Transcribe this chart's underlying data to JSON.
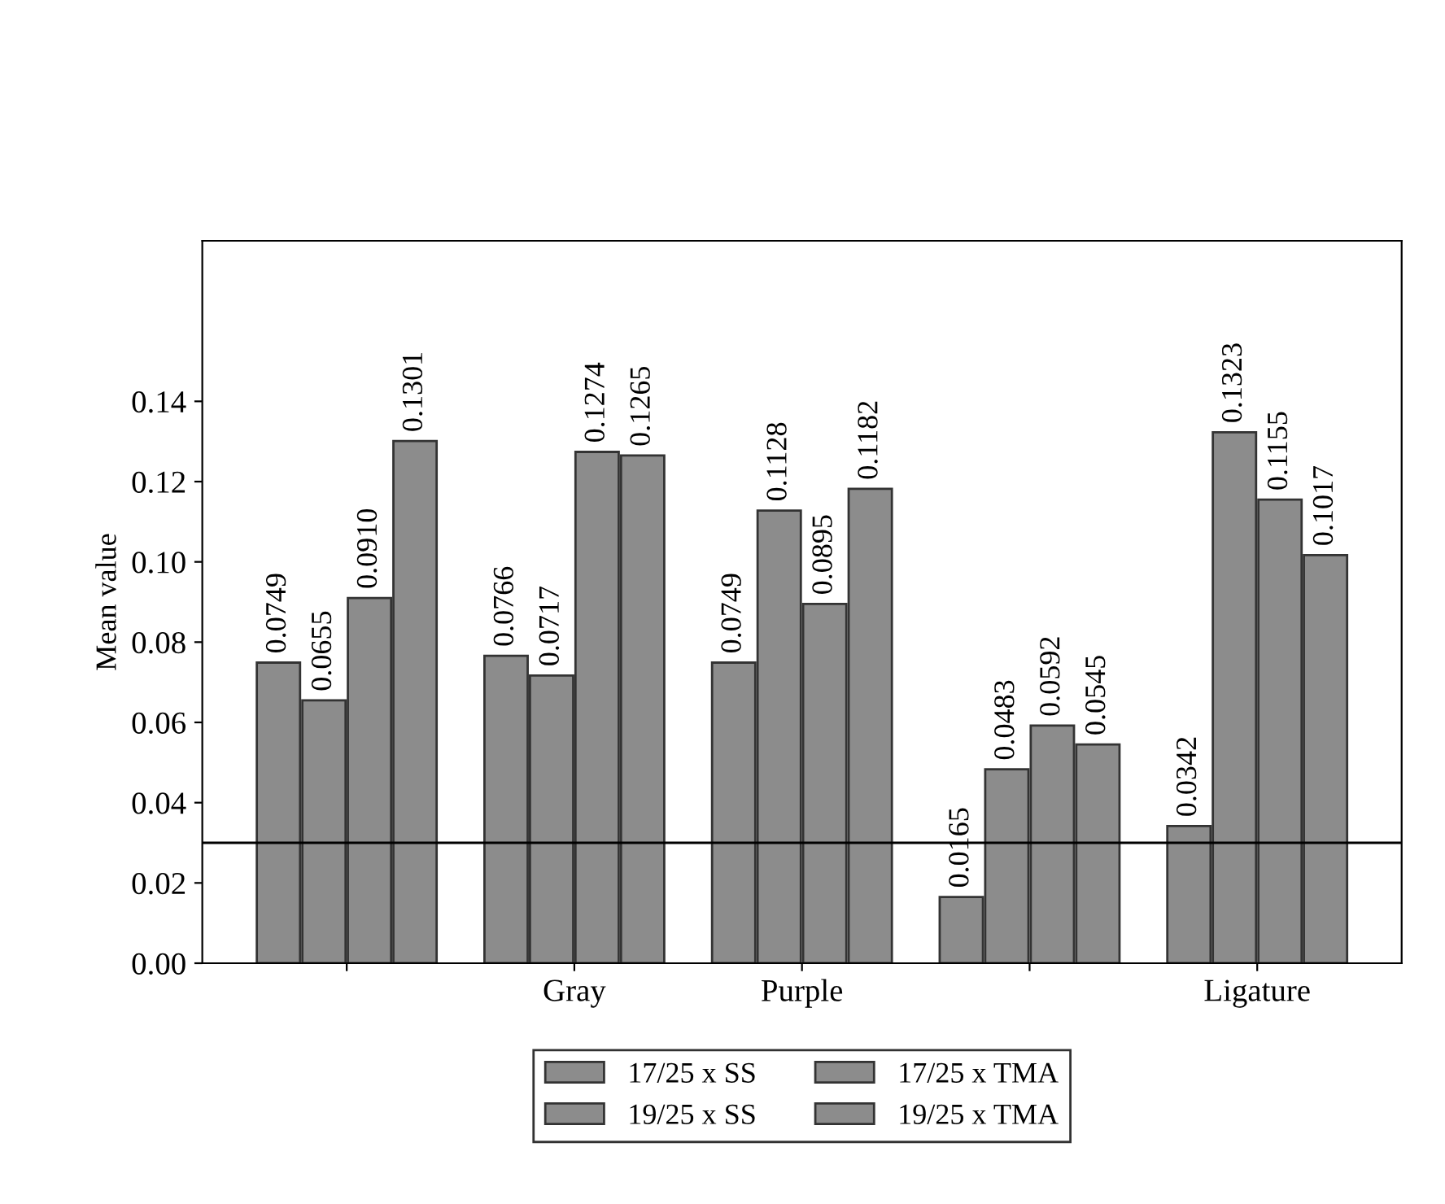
{
  "chart_data": {
    "type": "bar",
    "ylabel": "Mean value",
    "categories": [
      null,
      "Gray",
      "Purple",
      null,
      "Ligature"
    ],
    "series": [
      {
        "name": "17/25 x SS",
        "color": "#8c8c8c",
        "values": [
          0.0749,
          0.0766,
          0.0749,
          0.0165,
          0.0342
        ]
      },
      {
        "name": "17/25 x TMA",
        "color": "#8c8c8c",
        "values": [
          0.0655,
          0.0717,
          0.1128,
          0.0483,
          0.1323
        ]
      },
      {
        "name": "19/25 x SS",
        "color": "#8c8c8c",
        "values": [
          0.091,
          0.1274,
          0.0895,
          0.0592,
          0.1155
        ]
      },
      {
        "name": "19/25 x TMA",
        "color": "#8c8c8c",
        "values": [
          0.1301,
          0.1265,
          0.1182,
          0.0545,
          0.1017
        ]
      }
    ],
    "ylim": [
      0,
      0.18
    ],
    "yticks": [
      {
        "value": 0,
        "label": "0.00"
      },
      {
        "value": 0.02,
        "label": "0.02"
      },
      {
        "value": 0.04,
        "label": "0.04"
      },
      {
        "value": 0.06,
        "label": "0.06"
      },
      {
        "value": 0.08,
        "label": "0.08"
      },
      {
        "value": 0.1,
        "label": "0.10"
      },
      {
        "value": 0.12,
        "label": "0.12"
      },
      {
        "value": 0.14,
        "label": "0.14"
      }
    ],
    "ref_lines": [
      {
        "axis": "y",
        "value": 0.03,
        "color": "#000000"
      }
    ],
    "value_labels": [
      [
        "0.0749",
        "0.0766",
        "0.0749",
        "0.0165",
        "0.0342"
      ],
      [
        "0.0655",
        "0.0717",
        "0.1128",
        "0.0483",
        "0.1323"
      ],
      [
        "0.0910",
        "0.1274",
        "0.0895",
        "0.0592",
        "0.1155"
      ],
      [
        "0.1301",
        "0.1265",
        "0.1182",
        "0.0545",
        "0.1017"
      ]
    ],
    "legend": "bottom",
    "grid": false
  }
}
